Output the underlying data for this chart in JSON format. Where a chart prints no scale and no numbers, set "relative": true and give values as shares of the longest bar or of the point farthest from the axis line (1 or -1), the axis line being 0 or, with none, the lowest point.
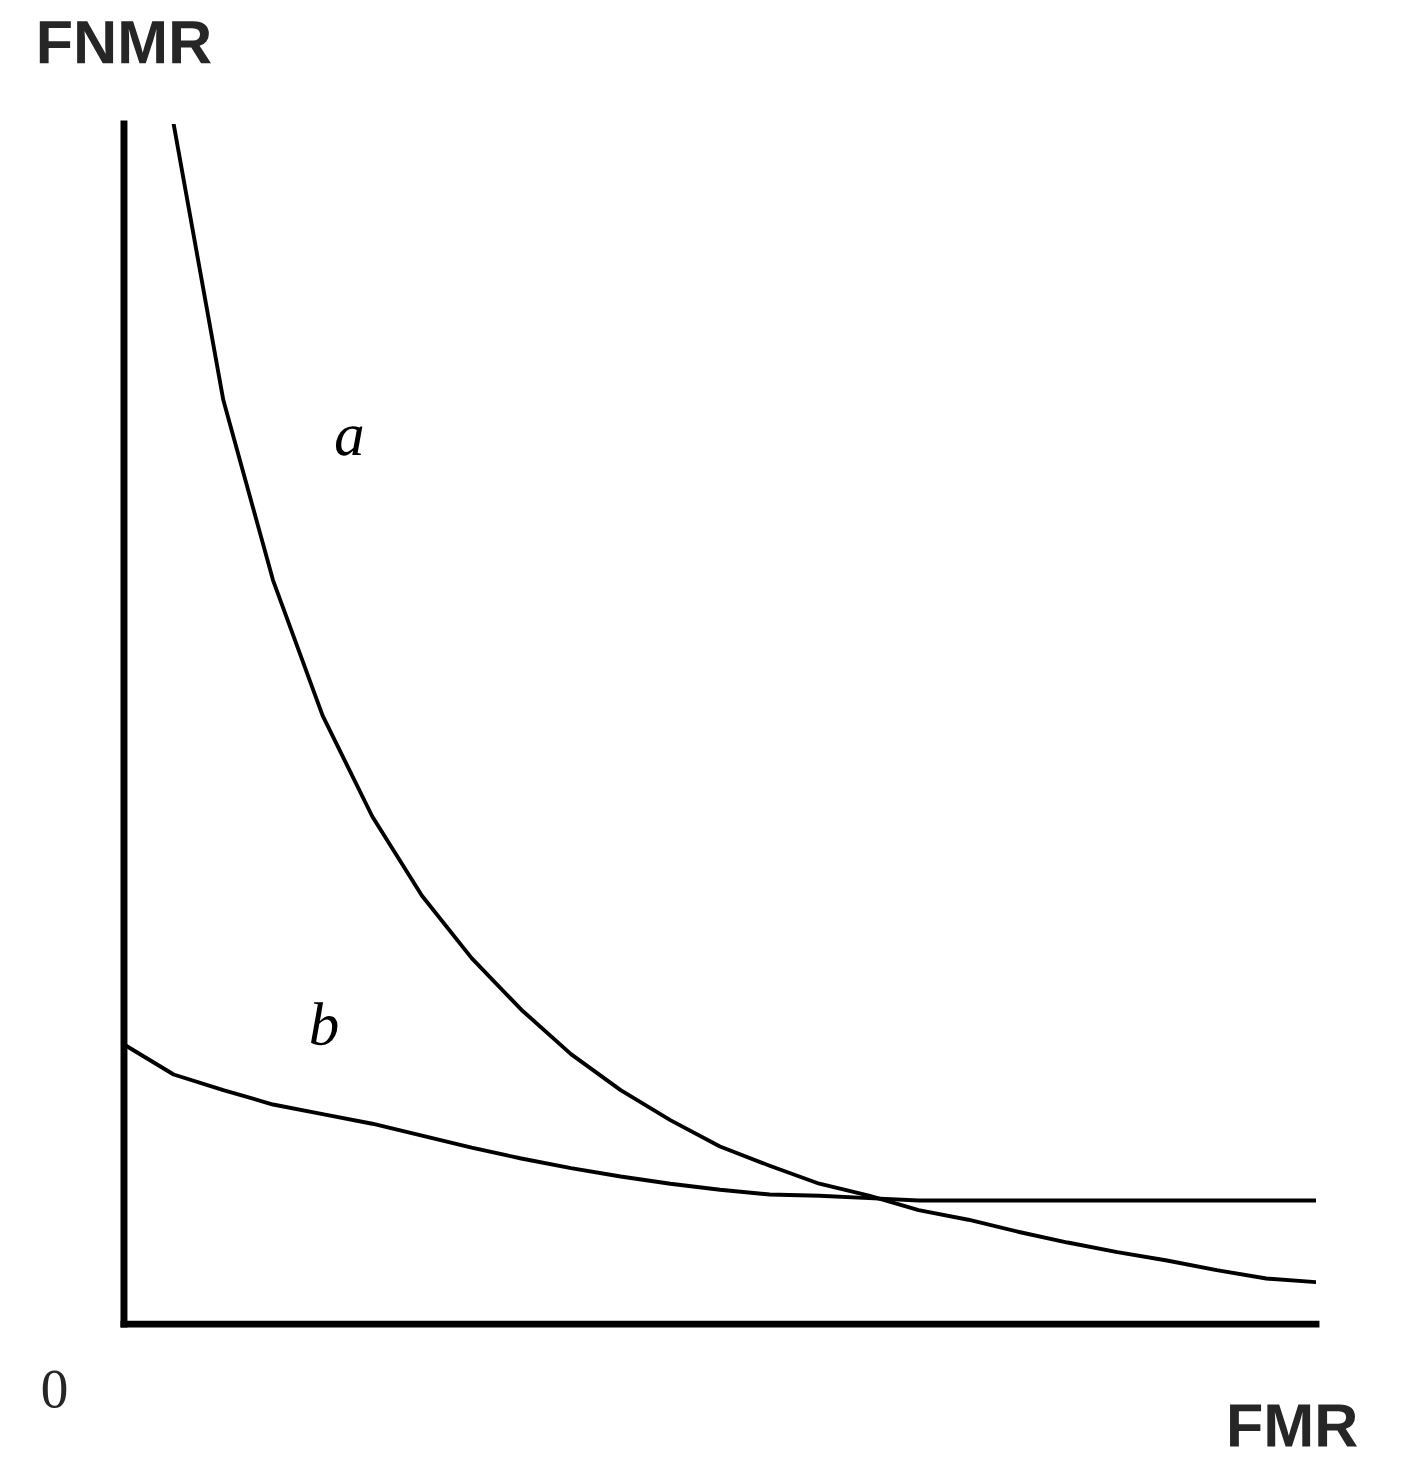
{
  "chart_data": {
    "type": "line",
    "relative": true,
    "xlabel": "FMR",
    "ylabel": "FNMR",
    "annotations": [
      "0"
    ],
    "categories": [
      null,
      null,
      null,
      null,
      null,
      null,
      null,
      null,
      null,
      null,
      null,
      null,
      null,
      null,
      null,
      null,
      null,
      null,
      null,
      null,
      null,
      null,
      null,
      null,
      null
    ],
    "series": [
      {
        "name": "a",
        "color": "#000000",
        "values": [
          null,
          1.0,
          0.77,
          0.62,
          0.507,
          0.423,
          0.357,
          0.305,
          0.262,
          0.225,
          0.195,
          0.17,
          0.148,
          0.132,
          0.117,
          0.107,
          0.095,
          0.087,
          0.077,
          0.068,
          0.06,
          0.053,
          0.045,
          0.038,
          0.035
        ]
      },
      {
        "name": "b",
        "color": "#000000",
        "values": [
          0.233,
          0.208,
          0.195,
          0.183,
          0.175,
          0.167,
          0.157,
          0.147,
          0.138,
          0.13,
          0.123,
          0.117,
          0.112,
          0.108,
          0.107,
          0.105,
          0.103,
          0.103,
          0.103,
          0.103,
          0.103,
          0.103,
          0.103,
          0.103,
          0.103
        ]
      }
    ],
    "legend": false,
    "marker": "none",
    "line_style": "solid"
  }
}
